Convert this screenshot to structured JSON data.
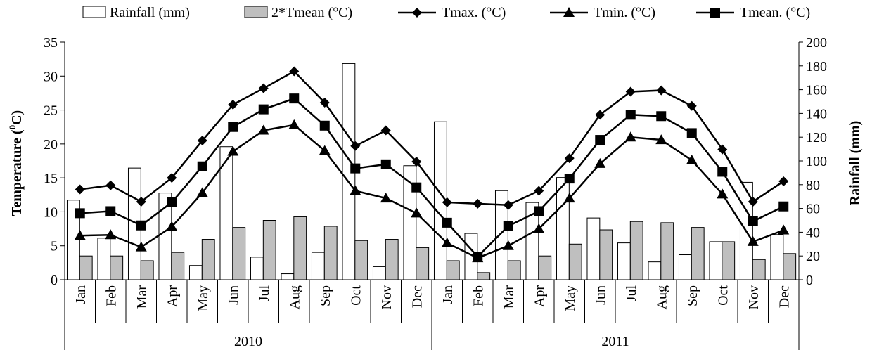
{
  "chart_data": {
    "type": "bar",
    "categories": [
      "Jan",
      "Feb",
      "Mar",
      "Apr",
      "May",
      "Jun",
      "Jul",
      "Aug",
      "Sep",
      "Oct",
      "Nov",
      "Dec",
      "Jan",
      "Feb",
      "Mar",
      "Apr",
      "May",
      "Jun",
      "Jul",
      "Aug",
      "Sep",
      "Oct",
      "Nov",
      "Dec"
    ],
    "groups": [
      {
        "label": "2010",
        "start": 0,
        "end": 11
      },
      {
        "label": "2011",
        "start": 12,
        "end": 23
      }
    ],
    "y_left": {
      "label": "Temperature (°C)",
      "label_prefix": "Temperature (",
      "label_sup": "0",
      "label_suffix": "C)",
      "min": 0,
      "max": 35,
      "step": 5
    },
    "y_right": {
      "label": "Rainfall (mm)",
      "min": 0,
      "max": 200,
      "step": 20
    },
    "bar_series": [
      {
        "name": "Rainfall (mm)",
        "axis": "right",
        "color": "#ffffff",
        "values": [
          67,
          35,
          94,
          73,
          12,
          112,
          19,
          5,
          23,
          182,
          11,
          96,
          133,
          39,
          75,
          65,
          86,
          52,
          31,
          15,
          21,
          32,
          82,
          38
        ]
      },
      {
        "name": "2*Tmean (°C)",
        "axis": "right",
        "color": "#bfbfbf",
        "values": [
          20,
          20,
          16,
          23,
          34,
          44,
          50,
          53,
          45,
          33,
          34,
          27,
          16,
          6,
          16,
          20,
          30,
          42,
          49,
          48,
          44,
          32,
          17,
          22
        ]
      }
    ],
    "line_series": [
      {
        "name": "Tmax. (°C)",
        "axis": "left",
        "marker": "diamond",
        "values": [
          13.3,
          13.9,
          11.5,
          15.0,
          20.5,
          25.8,
          28.2,
          30.7,
          26.1,
          19.7,
          22.0,
          17.4,
          11.4,
          11.2,
          11.0,
          13.1,
          17.9,
          24.3,
          27.7,
          27.9,
          25.6,
          19.2,
          11.5,
          14.5
        ]
      },
      {
        "name": "Tmin. (°C)",
        "axis": "left",
        "marker": "triangle",
        "values": [
          6.5,
          6.6,
          4.8,
          7.8,
          12.8,
          18.9,
          22.0,
          22.8,
          19.0,
          13.1,
          12.0,
          9.8,
          5.4,
          3.2,
          5.0,
          7.5,
          12.0,
          17.1,
          21.0,
          20.6,
          17.6,
          12.6,
          5.6,
          7.3
        ]
      },
      {
        "name": "Tmean. (°C)",
        "axis": "left",
        "marker": "square",
        "values": [
          9.8,
          10.1,
          8.0,
          11.4,
          16.7,
          22.5,
          25.1,
          26.7,
          22.7,
          16.4,
          17.0,
          13.6,
          8.4,
          3.4,
          7.9,
          10.1,
          14.9,
          20.6,
          24.3,
          24.1,
          21.6,
          15.9,
          8.6,
          10.8
        ]
      }
    ],
    "legend": {
      "placement": "top",
      "items": [
        "Rainfall (mm)",
        "2*Tmean (°C)",
        "Tmax. (°C)",
        "Tmin. (°C)",
        "Tmean. (°C)"
      ]
    },
    "grid": false
  }
}
